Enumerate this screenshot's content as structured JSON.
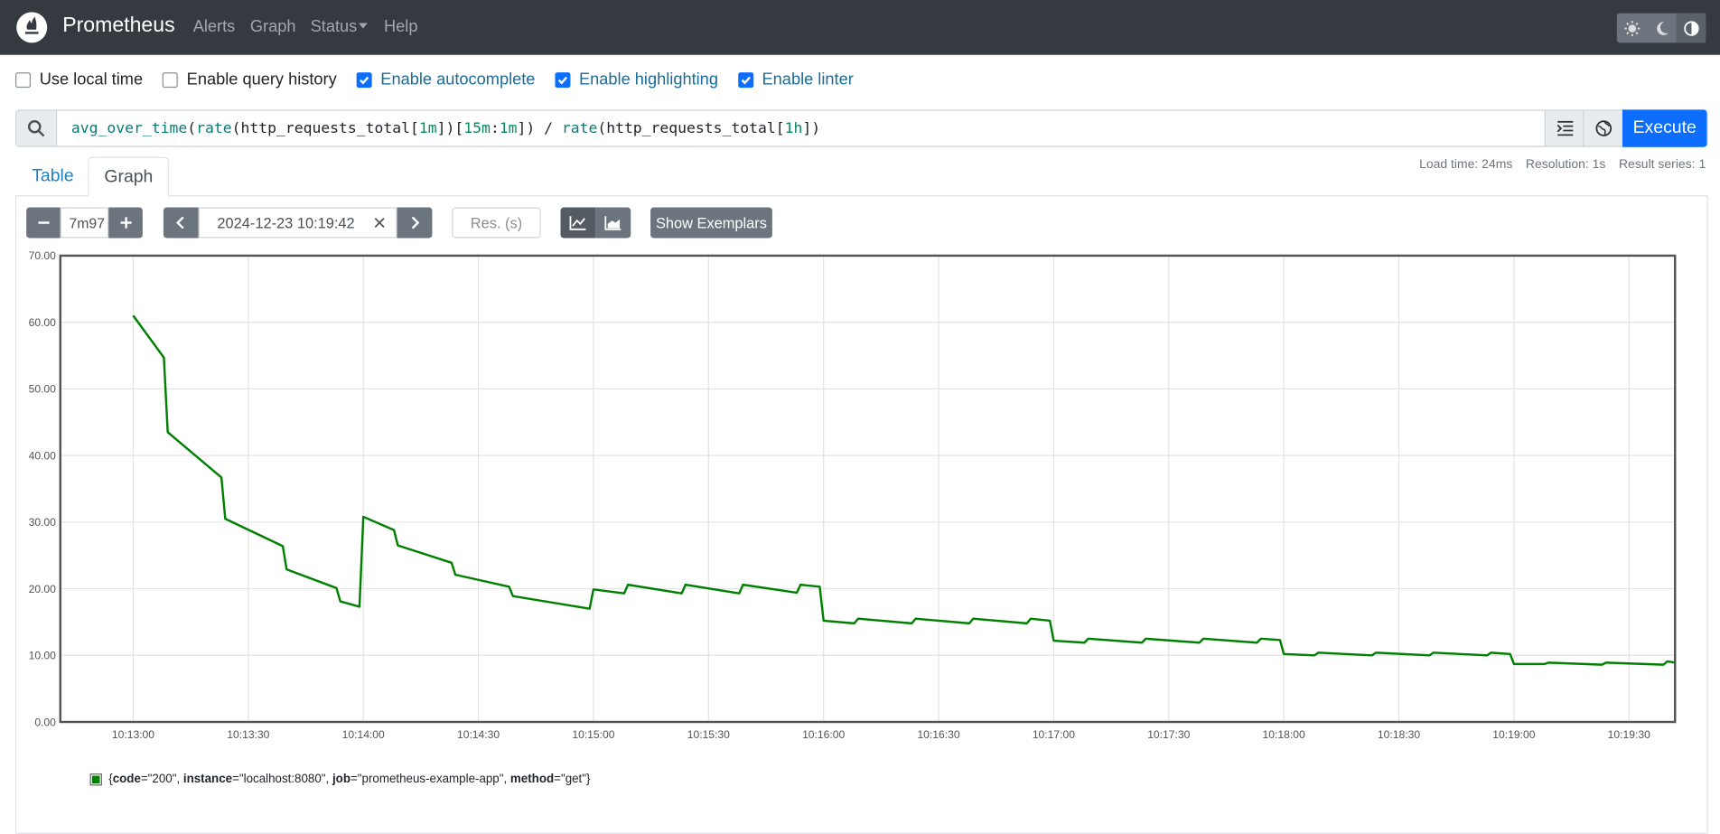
{
  "header": {
    "brand": "Prometheus",
    "nav": [
      "Alerts",
      "Graph",
      "Status",
      "Help"
    ]
  },
  "options": [
    {
      "label": "Use local time",
      "checked": false
    },
    {
      "label": "Enable query history",
      "checked": false
    },
    {
      "label": "Enable autocomplete",
      "checked": true
    },
    {
      "label": "Enable highlighting",
      "checked": true
    },
    {
      "label": "Enable linter",
      "checked": true
    }
  ],
  "query": {
    "expression": "avg_over_time(rate(http_requests_total[1m])[15m:1m]) / rate(http_requests_total[1h])",
    "execute": "Execute"
  },
  "tabs": [
    {
      "label": "Table",
      "active": false
    },
    {
      "label": "Graph",
      "active": true
    }
  ],
  "stats": [
    "Load time: 24ms",
    "Resolution: 1s",
    "Result series: 1"
  ],
  "controls": {
    "range": "7m97",
    "end_time": "2024-12-23 10:19:42",
    "resolution_placeholder": "Res. (s)",
    "exemplars": "Show Exemplars"
  },
  "chart_data": {
    "type": "line",
    "x": [
      "10:13:00",
      "10:13:08",
      "10:13:09",
      "10:13:23",
      "10:13:24",
      "10:13:39",
      "10:13:40",
      "10:13:53",
      "10:13:54",
      "10:13:59",
      "10:14:00",
      "10:14:08",
      "10:14:09",
      "10:14:23",
      "10:14:24",
      "10:14:38",
      "10:14:39",
      "10:14:59",
      "10:15:00",
      "10:15:08",
      "10:15:09",
      "10:15:23",
      "10:15:24",
      "10:15:38",
      "10:15:39",
      "10:15:53",
      "10:15:54",
      "10:15:59",
      "10:16:00",
      "10:16:08",
      "10:16:09",
      "10:16:23",
      "10:16:24",
      "10:16:38",
      "10:16:39",
      "10:16:53",
      "10:16:54",
      "10:16:59",
      "10:17:00",
      "10:17:08",
      "10:17:09",
      "10:17:23",
      "10:17:24",
      "10:17:38",
      "10:17:39",
      "10:17:53",
      "10:17:54",
      "10:17:59",
      "10:18:00",
      "10:18:08",
      "10:18:09",
      "10:18:23",
      "10:18:24",
      "10:18:38",
      "10:18:39",
      "10:18:53",
      "10:18:54",
      "10:18:59",
      "10:19:00",
      "10:19:08",
      "10:19:09",
      "10:19:23",
      "10:19:24",
      "10:19:39",
      "10:19:40",
      "10:19:42"
    ],
    "series": [
      {
        "name": "{code=\"200\", instance=\"localhost:8080\", job=\"prometheus-example-app\", method=\"get\"}",
        "color": "#008000",
        "values": [
          61.0,
          54.7,
          43.5,
          36.7,
          30.5,
          26.4,
          22.9,
          20.1,
          18.1,
          17.3,
          30.8,
          28.8,
          26.5,
          23.9,
          22.1,
          20.3,
          18.9,
          17.0,
          19.9,
          19.3,
          20.6,
          19.3,
          20.6,
          19.3,
          20.6,
          19.4,
          20.6,
          20.3,
          15.2,
          14.8,
          15.5,
          14.8,
          15.5,
          14.8,
          15.5,
          14.8,
          15.5,
          15.2,
          12.2,
          11.9,
          12.5,
          11.9,
          12.5,
          11.9,
          12.5,
          11.9,
          12.5,
          12.3,
          10.2,
          10.0,
          10.4,
          10.0,
          10.4,
          10.0,
          10.4,
          10.0,
          10.4,
          10.2,
          8.7,
          8.7,
          8.9,
          8.6,
          8.9,
          8.6,
          9.1,
          8.9
        ]
      }
    ],
    "xlim": [
      "10:12:41",
      "10:19:42"
    ],
    "xticks": [
      "10:13:00",
      "10:13:30",
      "10:14:00",
      "10:14:30",
      "10:15:00",
      "10:15:30",
      "10:16:00",
      "10:16:30",
      "10:17:00",
      "10:17:30",
      "10:18:00",
      "10:18:30",
      "10:19:00",
      "10:19:30"
    ],
    "ylim": [
      0,
      70
    ],
    "yticks": [
      {
        "value": 0,
        "label": "0.00"
      },
      {
        "value": 10,
        "label": "10.00"
      },
      {
        "value": 20,
        "label": "20.00"
      },
      {
        "value": 30,
        "label": "30.00"
      },
      {
        "value": 40,
        "label": "40.00"
      },
      {
        "value": 50,
        "label": "50.00"
      },
      {
        "value": 60,
        "label": "60.00"
      },
      {
        "value": 70,
        "label": "70.00"
      }
    ],
    "grid": true
  }
}
